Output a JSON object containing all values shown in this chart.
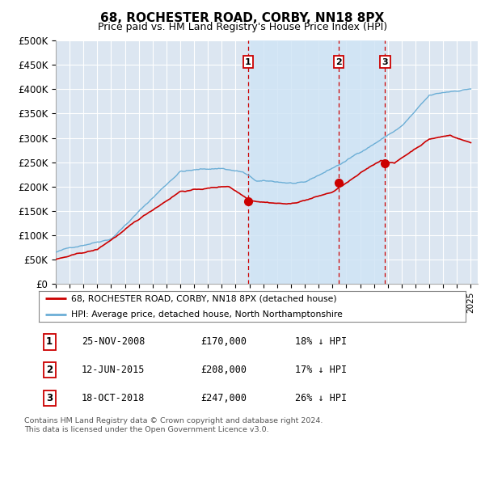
{
  "title": "68, ROCHESTER ROAD, CORBY, NN18 8PX",
  "subtitle": "Price paid vs. HM Land Registry's House Price Index (HPI)",
  "footer": "Contains HM Land Registry data © Crown copyright and database right 2024.\nThis data is licensed under the Open Government Licence v3.0.",
  "legend_line1": "68, ROCHESTER ROAD, CORBY, NN18 8PX (detached house)",
  "legend_line2": "HPI: Average price, detached house, North Northamptonshire",
  "ylim": [
    0,
    500000
  ],
  "yticks": [
    0,
    50000,
    100000,
    150000,
    200000,
    250000,
    300000,
    350000,
    400000,
    450000,
    500000
  ],
  "ytick_labels": [
    "£0",
    "£50K",
    "£100K",
    "£150K",
    "£200K",
    "£250K",
    "£300K",
    "£350K",
    "£400K",
    "£450K",
    "£500K"
  ],
  "xlim_start": 1995.0,
  "xlim_end": 2025.5,
  "sale_events": [
    {
      "num": 1,
      "date": "25-NOV-2008",
      "price": "£170,000",
      "hpi": "18% ↓ HPI",
      "x_val": 2008.9
    },
    {
      "num": 2,
      "date": "12-JUN-2015",
      "price": "£208,000",
      "hpi": "17% ↓ HPI",
      "x_val": 2015.45
    },
    {
      "num": 3,
      "date": "18-OCT-2018",
      "price": "£247,000",
      "hpi": "26% ↓ HPI",
      "x_val": 2018.8
    }
  ],
  "hpi_color": "#6baed6",
  "price_color": "#cc0000",
  "shade_color": "#d0e4f5",
  "background_color": "#dce6f1",
  "grid_color": "#ffffff",
  "fig_width": 6.0,
  "fig_height": 5.9,
  "dpi": 100
}
